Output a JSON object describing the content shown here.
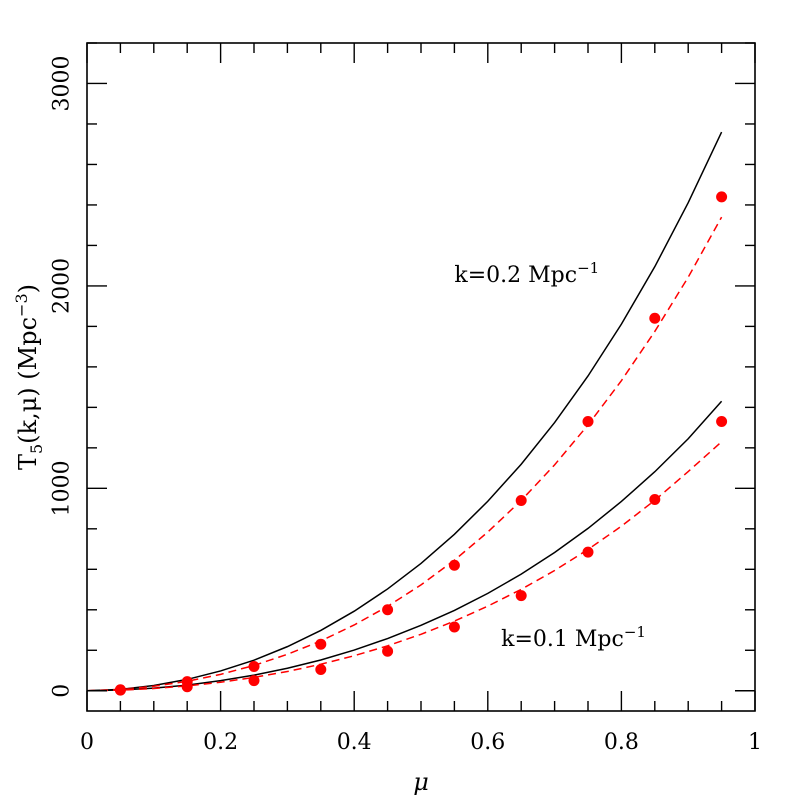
{
  "chart_data": {
    "type": "line",
    "xlabel": "μ",
    "ylabel_parts": {
      "base": "T",
      "sub": "5",
      "args": "(k,μ)",
      "units_open": "(Mpc",
      "units_exp": "−3",
      "units_close": ")"
    },
    "xlim": [
      0,
      1
    ],
    "ylim": [
      -100,
      3200
    ],
    "x_ticks": [
      {
        "value": 0,
        "label": "0"
      },
      {
        "value": 0.2,
        "label": "0.2"
      },
      {
        "value": 0.4,
        "label": "0.4"
      },
      {
        "value": 0.6,
        "label": "0.6"
      },
      {
        "value": 0.8,
        "label": "0.8"
      },
      {
        "value": 1,
        "label": "1"
      }
    ],
    "x_minor_step": 0.05,
    "y_ticks": [
      {
        "value": 0,
        "label": "0"
      },
      {
        "value": 1000,
        "label": "1000"
      },
      {
        "value": 2000,
        "label": "2000"
      },
      {
        "value": 3000,
        "label": "3000"
      }
    ],
    "y_minor_step": 200,
    "annotations": [
      {
        "id": "k02",
        "text": "k=0.2  Mpc",
        "sup": "−1",
        "at": [
          0.55,
          2020
        ]
      },
      {
        "id": "k01",
        "text": "k=0.1  Mpc",
        "sup": "−1",
        "at": [
          0.62,
          220
        ]
      }
    ],
    "series": [
      {
        "id": "k02-solid",
        "style": "solid",
        "color": "#000000",
        "x": [
          0,
          0.05,
          0.1,
          0.15,
          0.2,
          0.25,
          0.3,
          0.35,
          0.4,
          0.45,
          0.5,
          0.55,
          0.6,
          0.65,
          0.7,
          0.75,
          0.8,
          0.85,
          0.9,
          0.95
        ],
        "y": [
          0,
          7,
          26,
          56,
          98,
          151,
          218,
          298,
          393,
          503,
          629,
          773,
          936,
          1119,
          1325,
          1555,
          1811,
          2095,
          2411,
          2760
        ]
      },
      {
        "id": "k02-dashed",
        "style": "dashed",
        "color": "#ff0000",
        "x": [
          0,
          0.05,
          0.1,
          0.15,
          0.2,
          0.25,
          0.3,
          0.35,
          0.4,
          0.45,
          0.5,
          0.55,
          0.6,
          0.65,
          0.7,
          0.75,
          0.8,
          0.85,
          0.9,
          0.95
        ],
        "y": [
          0,
          6,
          22,
          47,
          81,
          125,
          180,
          246,
          325,
          417,
          523,
          645,
          784,
          940,
          1116,
          1313,
          1532,
          1775,
          2043,
          2340
        ]
      },
      {
        "id": "k01-solid",
        "style": "solid",
        "color": "#000000",
        "x": [
          0,
          0.05,
          0.1,
          0.15,
          0.2,
          0.25,
          0.3,
          0.35,
          0.4,
          0.45,
          0.5,
          0.55,
          0.6,
          0.65,
          0.7,
          0.75,
          0.8,
          0.85,
          0.9,
          0.95
        ],
        "y": [
          0,
          4,
          13,
          28,
          50,
          77,
          111,
          152,
          201,
          258,
          323,
          397,
          481,
          576,
          683,
          802,
          935,
          1082,
          1245,
          1430
        ]
      },
      {
        "id": "k01-dashed",
        "style": "dashed",
        "color": "#ff0000",
        "x": [
          0,
          0.05,
          0.1,
          0.15,
          0.2,
          0.25,
          0.3,
          0.35,
          0.4,
          0.45,
          0.5,
          0.55,
          0.6,
          0.65,
          0.7,
          0.75,
          0.8,
          0.85,
          0.9,
          0.95
        ],
        "y": [
          0,
          3,
          11,
          24,
          42,
          66,
          95,
          131,
          173,
          222,
          279,
          344,
          418,
          501,
          594,
          698,
          813,
          941,
          1083,
          1230
        ]
      },
      {
        "id": "k02-points",
        "style": "points",
        "color": "#ff0000",
        "x": [
          0.05,
          0.15,
          0.25,
          0.35,
          0.45,
          0.55,
          0.65,
          0.75,
          0.85,
          0.95
        ],
        "y": [
          5,
          45,
          120,
          230,
          400,
          620,
          940,
          1330,
          1840,
          2440
        ]
      },
      {
        "id": "k01-points",
        "style": "points",
        "color": "#ff0000",
        "x": [
          0.05,
          0.15,
          0.25,
          0.35,
          0.45,
          0.55,
          0.65,
          0.75,
          0.85,
          0.95
        ],
        "y": [
          3,
          20,
          50,
          105,
          195,
          315,
          470,
          685,
          945,
          1330
        ]
      }
    ]
  }
}
